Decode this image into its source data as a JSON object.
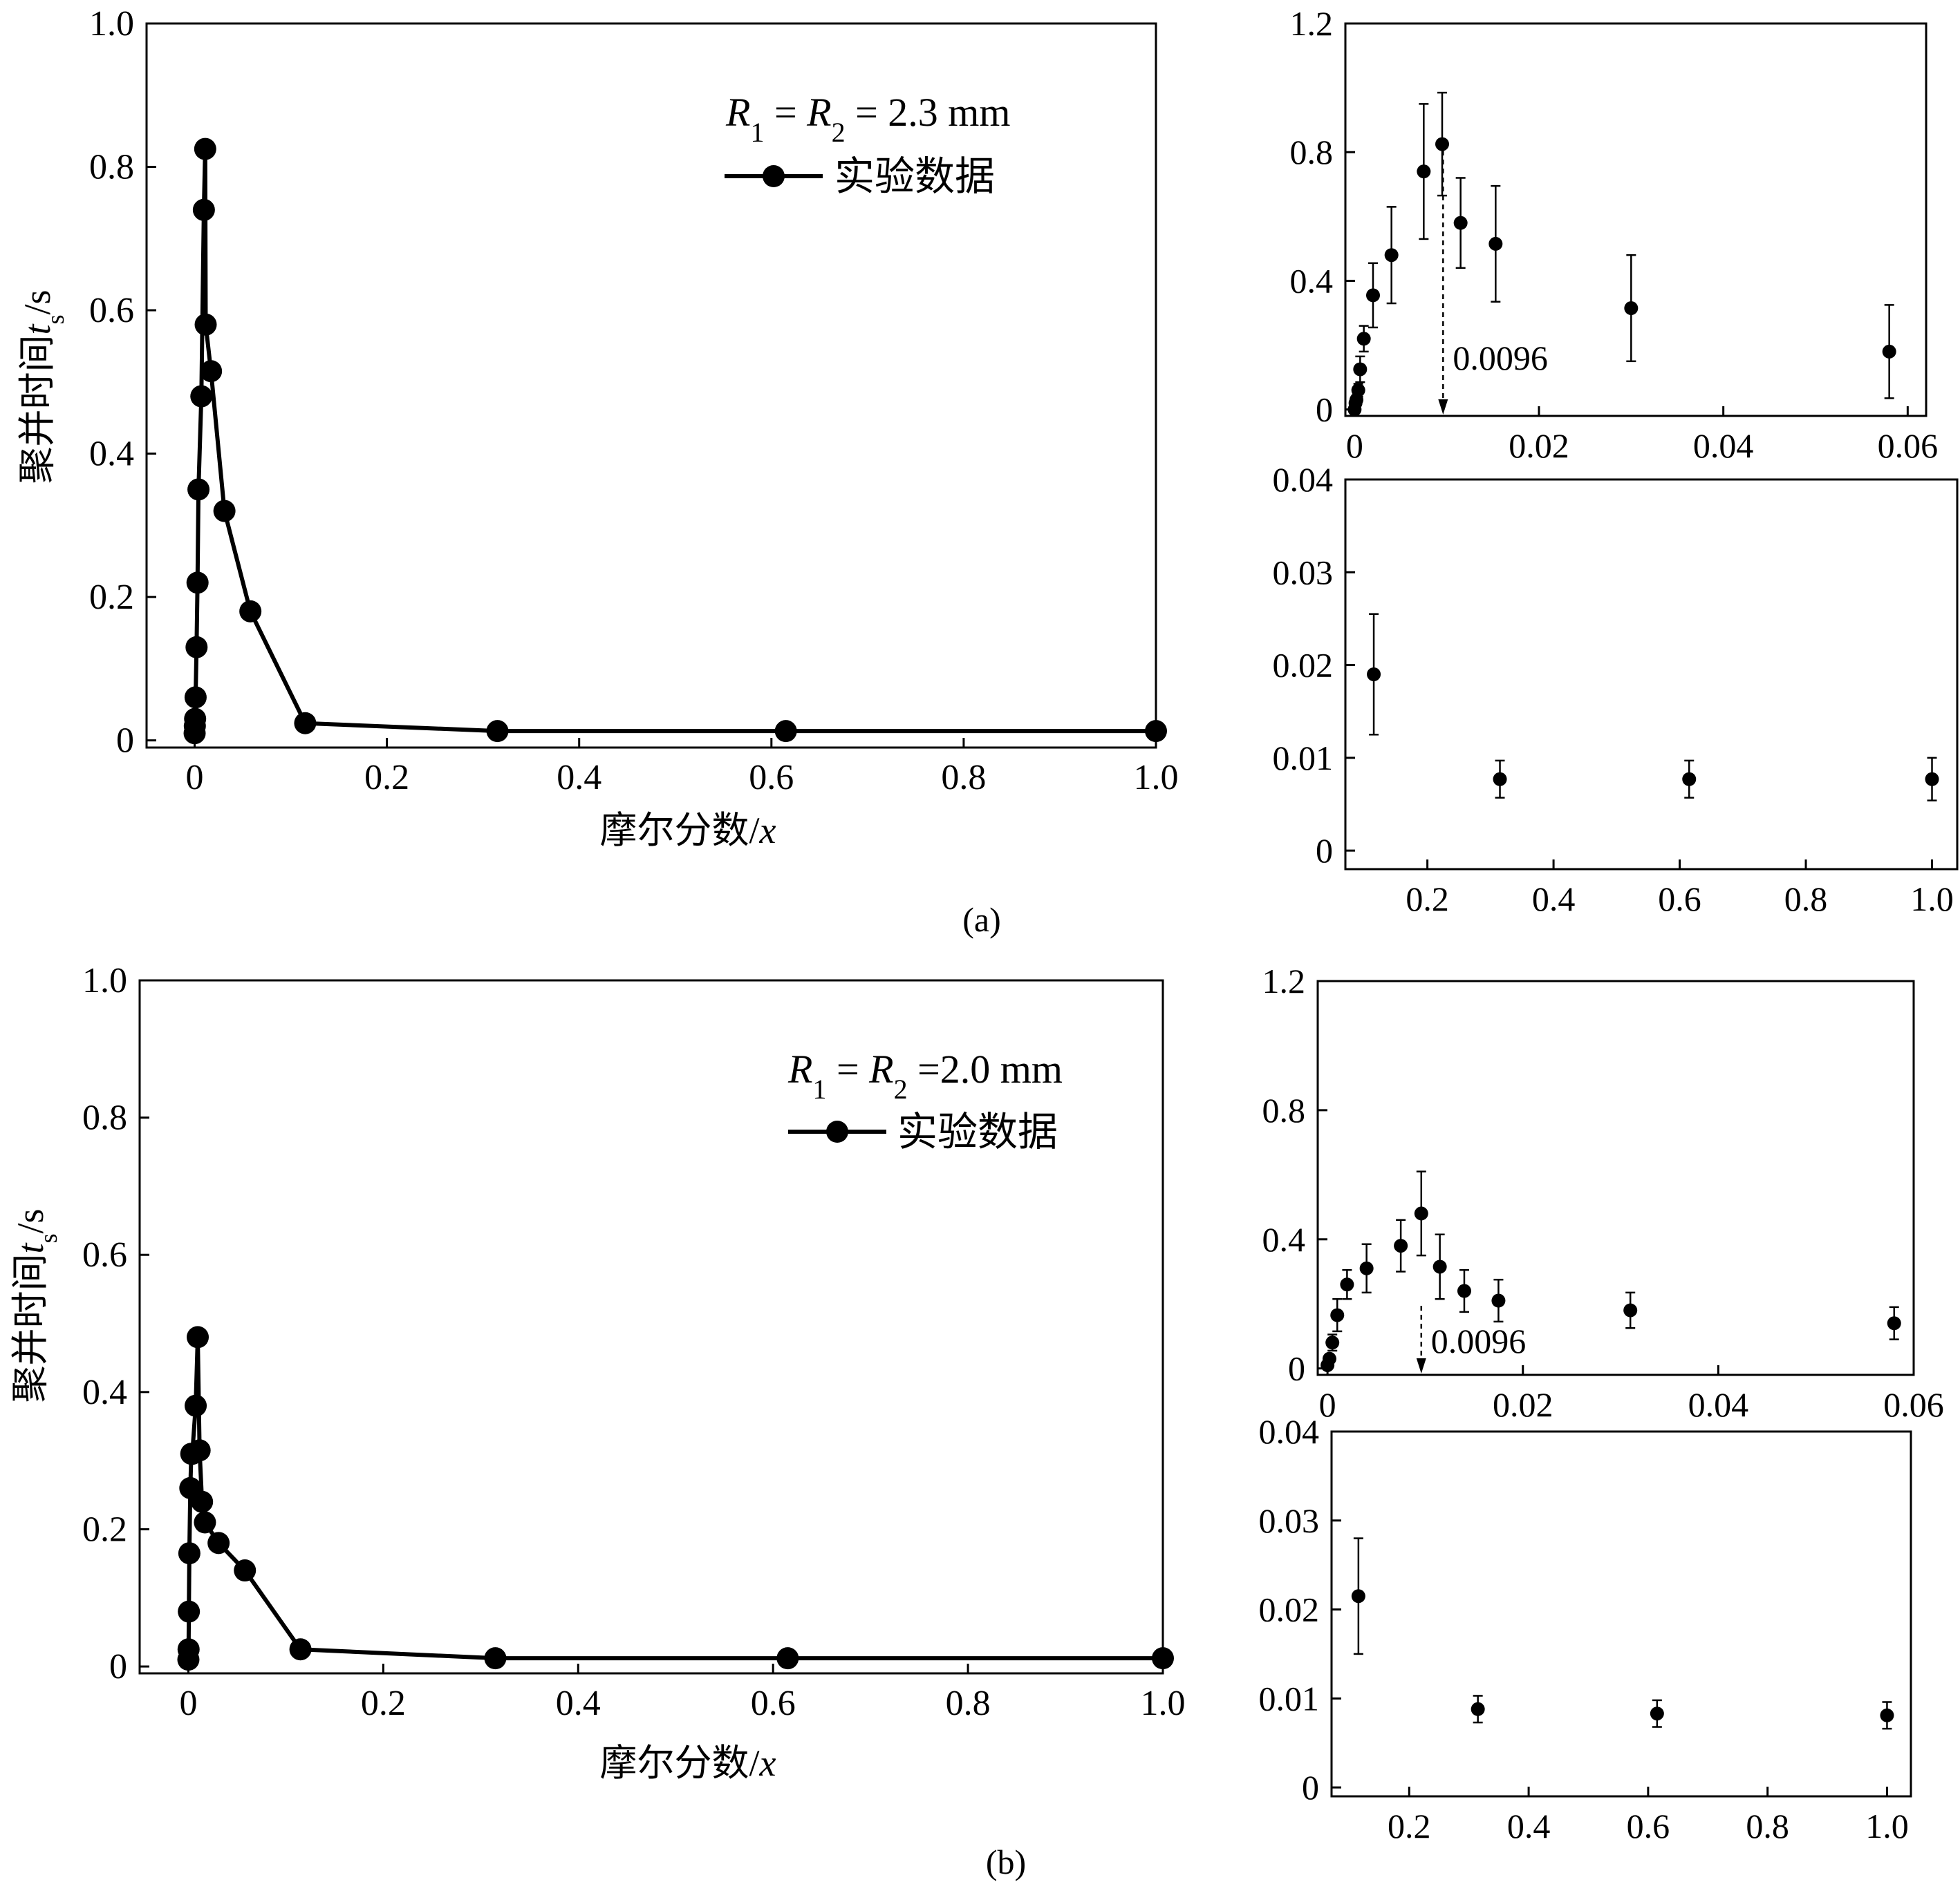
{
  "colors": {
    "ink": "#000000",
    "background": "#ffffff"
  },
  "figure": {
    "panels": [
      {
        "label": "(a)",
        "legend_radius": "R1 = R2 = 2.3 mm",
        "legend_radius_parts": {
          "R": "R",
          "sub1": "1",
          "eq1": " = ",
          "sub2": "2",
          "eq2": " = 2.3 mm"
        },
        "series_label": "实验数据",
        "ylabel_main": "聚并时间",
        "ylabel_var": "t",
        "ylabel_sub": "s",
        "ylabel_unit": "/s",
        "xlabel_main": "摩尔分数/",
        "xlabel_var": "x",
        "inset_top_annotation": "0.0096"
      },
      {
        "label": "(b)",
        "legend_radius": "R1 = R2 =2.0 mm",
        "legend_radius_parts": {
          "R": "R",
          "sub1": "1",
          "eq1": " = ",
          "sub2": "2",
          "eq2": " =2.0 mm"
        },
        "series_label": "实验数据",
        "ylabel_main": "聚并时间",
        "ylabel_var": "t",
        "ylabel_sub": "s",
        "ylabel_unit": "/s",
        "xlabel_main": "摩尔分数/",
        "xlabel_var": "x",
        "inset_top_annotation": "0.0096"
      }
    ]
  },
  "chart_data": [
    {
      "type": "line",
      "panel": "(a)",
      "title": "",
      "xlabel": "摩尔分数/x",
      "ylabel": "聚并时间ts/s",
      "xlim": [
        -0.05,
        1.0
      ],
      "ylim": [
        -0.01,
        1.0
      ],
      "xticks": [
        "0",
        "0.2",
        "0.4",
        "0.6",
        "0.8",
        "1.0"
      ],
      "yticks": [
        "0",
        "0.2",
        "0.4",
        "0.6",
        "0.8",
        "1.0"
      ],
      "legend_position": "top-right",
      "series": [
        {
          "name": "实验数据",
          "x": [
            0,
            0.0002,
            0.0005,
            0.001,
            0.002,
            0.003,
            0.004,
            0.007,
            0.0096,
            0.011,
            0.0115,
            0.017,
            0.031,
            0.058,
            0.115,
            0.315,
            0.615,
            1.0
          ],
          "y": [
            0.01,
            0.02,
            0.03,
            0.06,
            0.13,
            0.22,
            0.35,
            0.48,
            0.74,
            0.825,
            0.58,
            0.515,
            0.32,
            0.18,
            0.024,
            0.013,
            0.013,
            0.013
          ]
        }
      ]
    },
    {
      "type": "scatter",
      "panel": "(a) inset top",
      "xlim": [
        -0.001,
        0.062
      ],
      "ylim": [
        -0.02,
        1.2
      ],
      "xticks": [
        "0",
        "0.02",
        "0.04",
        "0.06"
      ],
      "yticks": [
        "0",
        "0.4",
        "0.8",
        "1.2"
      ],
      "annotation": {
        "text": "0.0096",
        "x": 0.0096
      },
      "points": [
        {
          "x": 0.0,
          "y": 0.0,
          "err": 0.0
        },
        {
          "x": 0.0001,
          "y": 0.02,
          "err": 0.01
        },
        {
          "x": 0.0002,
          "y": 0.03,
          "err": 0.015
        },
        {
          "x": 0.0004,
          "y": 0.06,
          "err": 0.02
        },
        {
          "x": 0.0006,
          "y": 0.125,
          "err": 0.04
        },
        {
          "x": 0.001,
          "y": 0.22,
          "err": 0.04
        },
        {
          "x": 0.002,
          "y": 0.355,
          "err": 0.1
        },
        {
          "x": 0.004,
          "y": 0.48,
          "err": 0.15
        },
        {
          "x": 0.0075,
          "y": 0.74,
          "err": 0.21
        },
        {
          "x": 0.0095,
          "y": 0.825,
          "err": 0.16
        },
        {
          "x": 0.0115,
          "y": 0.58,
          "err": 0.14
        },
        {
          "x": 0.0153,
          "y": 0.515,
          "err": 0.18
        },
        {
          "x": 0.03,
          "y": 0.315,
          "err": 0.165
        },
        {
          "x": 0.058,
          "y": 0.18,
          "err": 0.145
        }
      ]
    },
    {
      "type": "scatter",
      "panel": "(a) inset bottom",
      "xlim": [
        0.07,
        1.04
      ],
      "ylim": [
        -0.002,
        0.04
      ],
      "xticks": [
        "0.2",
        "0.4",
        "0.6",
        "0.8",
        "1.0"
      ],
      "yticks": [
        "0",
        "0.01",
        "0.02",
        "0.03",
        "0.04"
      ],
      "points": [
        {
          "x": 0.115,
          "y": 0.019,
          "err": 0.0065
        },
        {
          "x": 0.315,
          "y": 0.0077,
          "err": 0.002
        },
        {
          "x": 0.615,
          "y": 0.0077,
          "err": 0.002
        },
        {
          "x": 1.0,
          "y": 0.0077,
          "err": 0.0023
        }
      ]
    },
    {
      "type": "line",
      "panel": "(b)",
      "title": "",
      "xlabel": "摩尔分数/x",
      "ylabel": "聚并时间ts/s",
      "xlim": [
        -0.05,
        1.0
      ],
      "ylim": [
        -0.01,
        1.0
      ],
      "xticks": [
        "0",
        "0.2",
        "0.4",
        "0.6",
        "0.8",
        "1.0"
      ],
      "yticks": [
        "0",
        "0.2",
        "0.4",
        "0.6",
        "0.8",
        "1.0"
      ],
      "legend_position": "top-right",
      "series": [
        {
          "name": "实验数据",
          "x": [
            0,
            0.0002,
            0.0005,
            0.001,
            0.002,
            0.003,
            0.004,
            0.0075,
            0.0096,
            0.0115,
            0.014,
            0.017,
            0.031,
            0.058,
            0.115,
            0.315,
            0.615,
            1.0
          ],
          "y": [
            0.01,
            0.025,
            0.08,
            0.165,
            0.26,
            0.31,
            0.31,
            0.38,
            0.48,
            0.315,
            0.24,
            0.21,
            0.18,
            0.14,
            0.025,
            0.012,
            0.012,
            0.012
          ]
        }
      ]
    },
    {
      "type": "scatter",
      "panel": "(b) inset top",
      "xlim": [
        -0.001,
        0.06
      ],
      "ylim": [
        -0.02,
        1.2
      ],
      "xticks": [
        "0",
        "0.02",
        "0.04",
        "0.06"
      ],
      "yticks": [
        "0",
        "0.4",
        "0.8",
        "1.2"
      ],
      "annotation": {
        "text": "0.0096",
        "x": 0.0096
      },
      "points": [
        {
          "x": 0.0,
          "y": 0.01,
          "err": 0.005
        },
        {
          "x": 0.0002,
          "y": 0.03,
          "err": 0.01
        },
        {
          "x": 0.0005,
          "y": 0.08,
          "err": 0.025
        },
        {
          "x": 0.001,
          "y": 0.165,
          "err": 0.05
        },
        {
          "x": 0.002,
          "y": 0.26,
          "err": 0.045
        },
        {
          "x": 0.004,
          "y": 0.31,
          "err": 0.075
        },
        {
          "x": 0.0075,
          "y": 0.38,
          "err": 0.08
        },
        {
          "x": 0.0096,
          "y": 0.48,
          "err": 0.13
        },
        {
          "x": 0.0115,
          "y": 0.315,
          "err": 0.1
        },
        {
          "x": 0.014,
          "y": 0.24,
          "err": 0.065
        },
        {
          "x": 0.0175,
          "y": 0.21,
          "err": 0.065
        },
        {
          "x": 0.031,
          "y": 0.18,
          "err": 0.055
        },
        {
          "x": 0.058,
          "y": 0.14,
          "err": 0.05
        }
      ]
    },
    {
      "type": "scatter",
      "panel": "(b) inset bottom",
      "xlim": [
        0.07,
        1.04
      ],
      "ylim": [
        -0.001,
        0.04
      ],
      "xticks": [
        "0.2",
        "0.4",
        "0.6",
        "0.8",
        "1.0"
      ],
      "yticks": [
        "0",
        "0.01",
        "0.02",
        "0.03",
        "0.04"
      ],
      "points": [
        {
          "x": 0.115,
          "y": 0.0215,
          "err": 0.0065
        },
        {
          "x": 0.315,
          "y": 0.0088,
          "err": 0.0015
        },
        {
          "x": 0.615,
          "y": 0.0083,
          "err": 0.0015
        },
        {
          "x": 1.0,
          "y": 0.0081,
          "err": 0.0015
        }
      ]
    }
  ]
}
